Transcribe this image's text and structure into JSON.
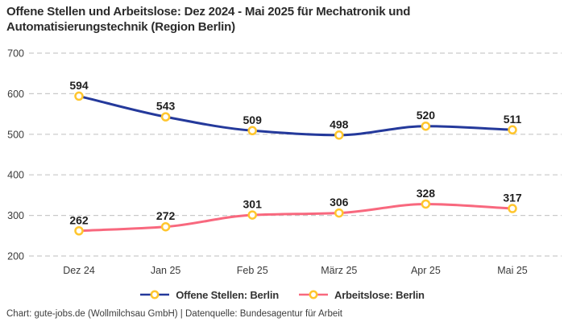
{
  "title": "Offene Stellen und Arbeitslose: Dez 2024 - Mai 2025 für Mechatronik und Automatisierungstechnik (Region Berlin)",
  "footer": "Chart: gute-jobs.de (Wollmilchsau GmbH) | Datenquelle: Bundesagentur für Arbeit",
  "colors": {
    "series_blue": "#24399b",
    "series_pink": "#f8687e",
    "marker_ring": "#ffc62e",
    "marker_fill": "#ffffff",
    "gridline": "#c9c9c9",
    "tick_text": "#3a3a3a",
    "point_label_text": "#1e1e1e",
    "background": "#ffffff"
  },
  "chart_data": {
    "type": "line",
    "title": "Offene Stellen und Arbeitslose: Dez 2024 - Mai 2025 für Mechatronik und Automatisierungstechnik (Region Berlin)",
    "categories": [
      "Dez 24",
      "Jan 25",
      "Feb 25",
      "März 25",
      "Apr 25",
      "Mai 25"
    ],
    "series": [
      {
        "name": "Offene Stellen: Berlin",
        "color": "#24399b",
        "values": [
          594,
          543,
          509,
          498,
          520,
          511
        ]
      },
      {
        "name": "Arbeitslose: Berlin",
        "color": "#f8687e",
        "values": [
          262,
          272,
          301,
          306,
          328,
          317
        ]
      }
    ],
    "ylim": [
      200,
      700
    ],
    "yticks": [
      700,
      600,
      500,
      400,
      300,
      200
    ],
    "xlabel": "",
    "ylabel": "",
    "grid": "horizontal-dashed",
    "legend_position": "bottom",
    "marker": "circle-gold-ring-white-fill",
    "point_labels_visible": true,
    "source": "Datenquelle: Bundesagentur für Arbeit"
  }
}
